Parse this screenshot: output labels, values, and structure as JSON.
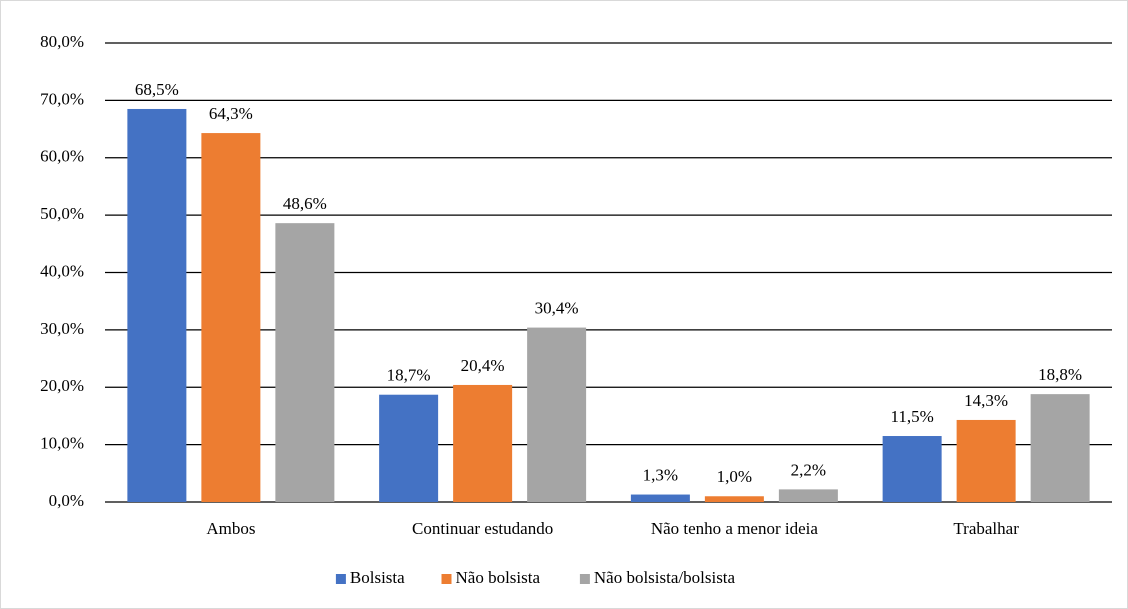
{
  "chart_data": {
    "type": "bar",
    "categories": [
      "Ambos",
      "Continuar estudando",
      "Não tenho a menor ideia",
      "Trabalhar"
    ],
    "series": [
      {
        "name": "Bolsista",
        "color": "#4472c4",
        "values": [
          68.5,
          18.7,
          1.3,
          11.5
        ],
        "value_labels": [
          "68,5%",
          "18,7%",
          "1,3%",
          "11,5%"
        ]
      },
      {
        "name": "Não bolsista",
        "color": "#ed7d31",
        "values": [
          64.3,
          20.4,
          1.0,
          14.3
        ],
        "value_labels": [
          "64,3%",
          "20,4%",
          "1,0%",
          "14,3%"
        ]
      },
      {
        "name": "Não bolsista/bolsista",
        "color": "#a5a5a5",
        "values": [
          48.6,
          30.4,
          2.2,
          18.8
        ],
        "value_labels": [
          "48,6%",
          "30,4%",
          "2,2%",
          "18,8%"
        ]
      }
    ],
    "ylim": [
      0,
      80
    ],
    "yticks": [
      {
        "value": 0,
        "label": "0,0%"
      },
      {
        "value": 10,
        "label": "10,0%"
      },
      {
        "value": 20,
        "label": "20,0%"
      },
      {
        "value": 30,
        "label": "30,0%"
      },
      {
        "value": 40,
        "label": "40,0%"
      },
      {
        "value": 50,
        "label": "50,0%"
      },
      {
        "value": 60,
        "label": "60,0%"
      },
      {
        "value": 70,
        "label": "70,0%"
      },
      {
        "value": 80,
        "label": "80,0%"
      }
    ],
    "grid": true,
    "legend": "bottom"
  }
}
